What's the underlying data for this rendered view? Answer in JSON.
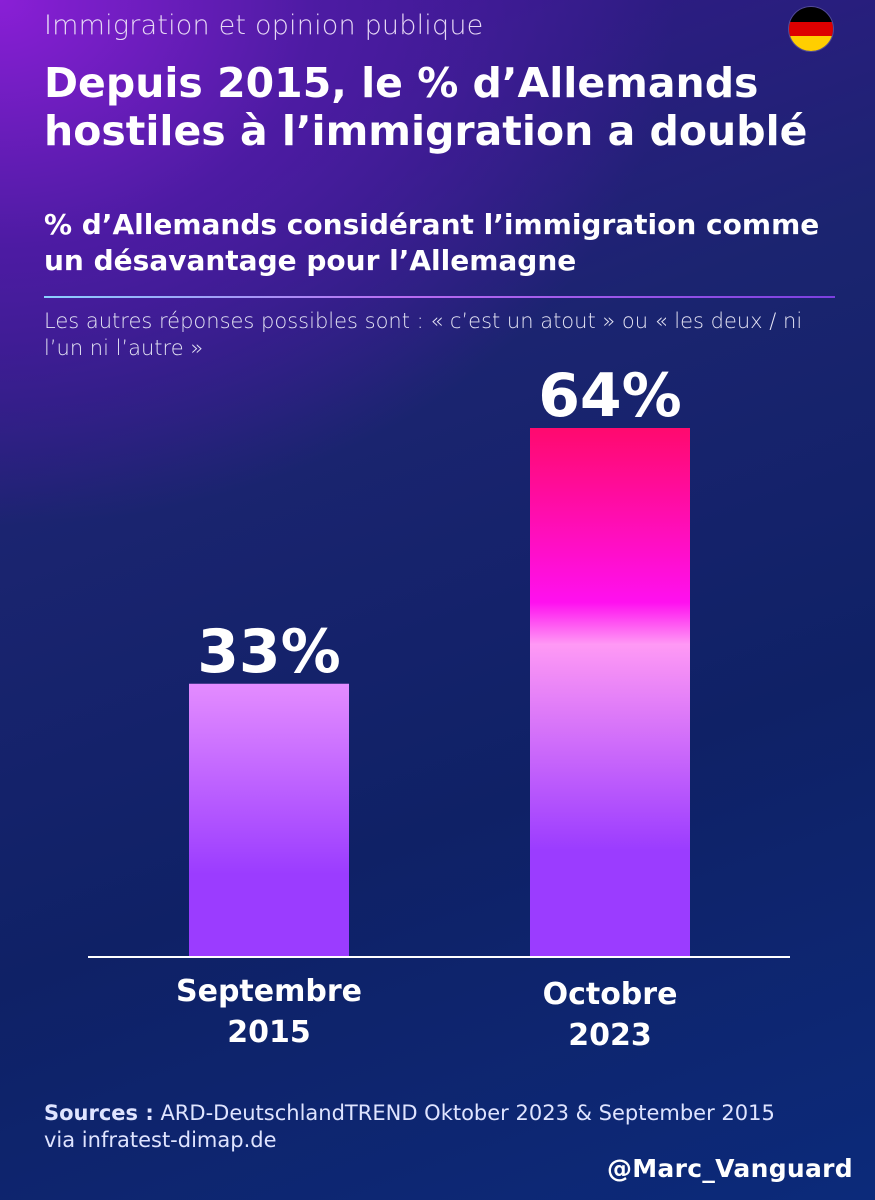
{
  "header": {
    "kicker": "Immigration et opinion publique",
    "title": "Depuis 2015, le % d’Allemands hostiles à l’immigration a doublé",
    "flag_icon": "germany-flag-icon",
    "flag_colors": [
      "#000000",
      "#dd0000",
      "#ffce00"
    ]
  },
  "chart_data": {
    "type": "bar",
    "title": "% d’Allemands considérant l’immigration comme un désavantage pour l’Allemagne",
    "note": "Les autres réponses possibles sont : « c’est un atout » ou « les deux / ni l’un ni l’autre »",
    "categories": [
      "Septembre 2015",
      "Octobre 2023"
    ],
    "category_lines": [
      [
        "Septembre",
        "2015"
      ],
      [
        "Octobre",
        "2023"
      ]
    ],
    "values": [
      33,
      64
    ],
    "value_labels": [
      "33%",
      "64%"
    ],
    "ylim": [
      0,
      64
    ],
    "grid": false,
    "legend": "none",
    "colors": {
      "bar_2015": [
        "#e48cff",
        "#9b3cff"
      ],
      "bar_2023": [
        "#ff0a6e",
        "#ff10ef",
        "#ff99f5",
        "#9b3cff"
      ],
      "baseline": "#ffffff"
    }
  },
  "footer": {
    "sources_lead": "Sources :",
    "sources_text": " ARD-DeutschlandTREND Oktober 2023 & September 2015",
    "sources_line2": "via infratest-dimap.de",
    "handle": "@Marc_Vanguard"
  }
}
